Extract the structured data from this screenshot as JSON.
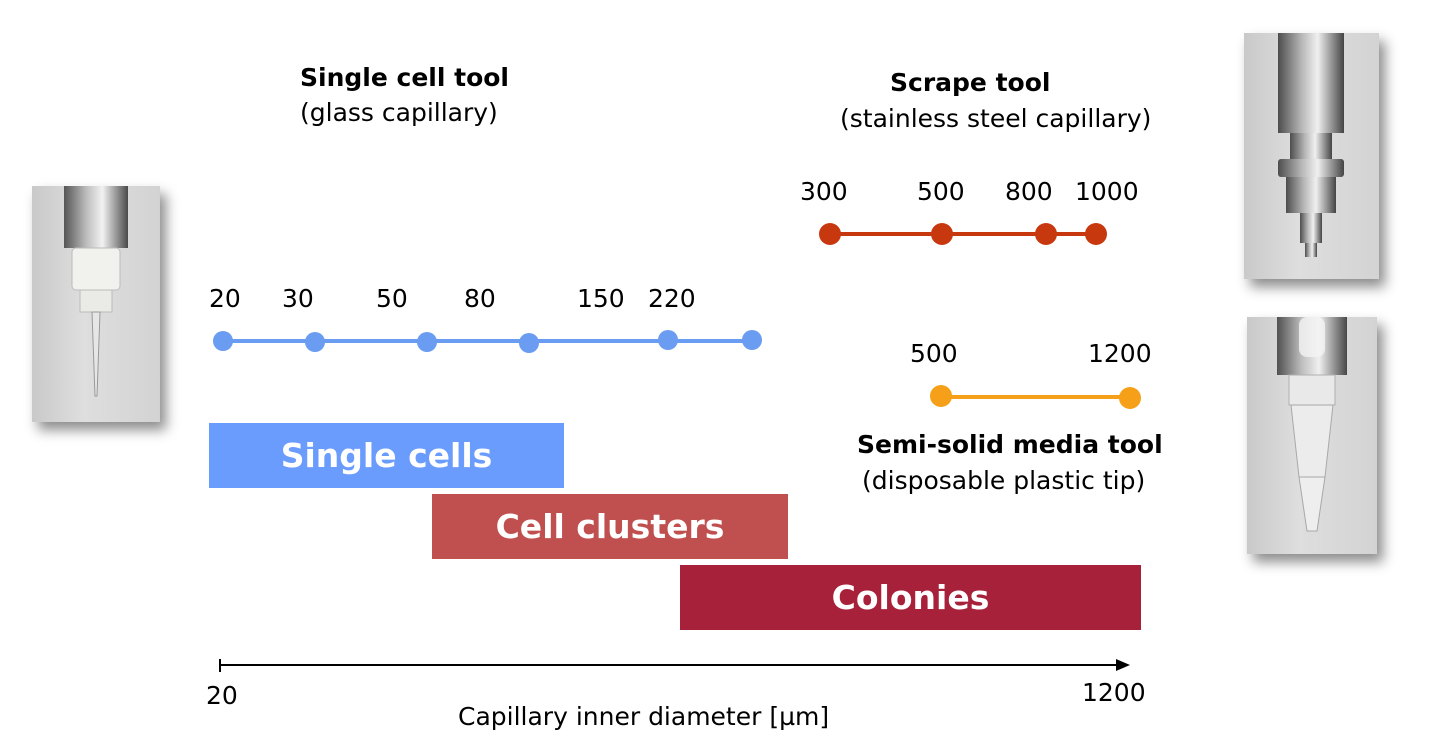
{
  "tools": {
    "single_cell": {
      "title": "Single cell tool",
      "subtitle": "(glass capillary)",
      "color": "#6a9cf2",
      "ticks": [
        "20",
        "30",
        "50",
        "80",
        "150",
        "220"
      ]
    },
    "scrape": {
      "title": "Scrape tool",
      "subtitle": "(stainless steel capillary)",
      "color": "#c8380e",
      "ticks": [
        "300",
        "500",
        "800",
        "1000"
      ]
    },
    "semi_solid": {
      "title": "Semi-solid media tool",
      "subtitle": "(disposable plastic tip)",
      "color": "#f5a018",
      "ticks": [
        "500",
        "1200"
      ]
    }
  },
  "bands": {
    "single_cells": {
      "label": "Single cells",
      "color": "#6a9cfd"
    },
    "cell_clusters": {
      "label": "Cell clusters",
      "color": "#c05050"
    },
    "colonies": {
      "label": "Colonies",
      "color": "#a8213a"
    }
  },
  "axis": {
    "min_label": "20",
    "max_label": "1200",
    "label": "Capillary inner diameter [µm]"
  }
}
